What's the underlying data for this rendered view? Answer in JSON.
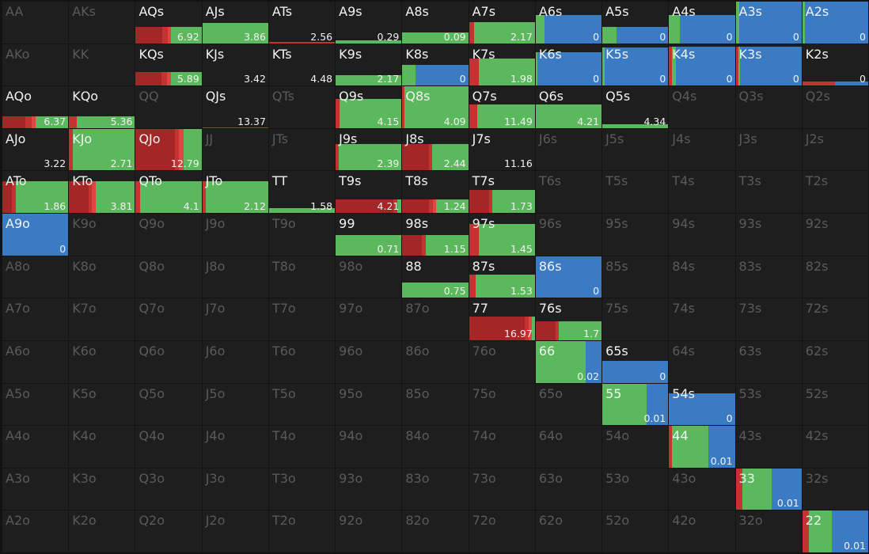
{
  "colors": {
    "fold": "#3b7bc4",
    "call": "#5cb85c",
    "raise_small": "#a52626",
    "raise_mid": "#c43232",
    "raise_big": "#e04545",
    "cell_bg": "#1e1e1e",
    "grid_bg": "#131313",
    "active_text": "#f2f2f2",
    "inactive_text": "#5a5a5a"
  },
  "ranks": [
    "A",
    "K",
    "Q",
    "J",
    "T",
    "9",
    "8",
    "7",
    "6",
    "5",
    "4",
    "3",
    "2"
  ],
  "cells": {
    "AQs": {
      "value": "6.92",
      "fill": 0.4,
      "mix": [
        [
          "raise_small",
          0.4
        ],
        [
          "raise_mid",
          0.09
        ],
        [
          "raise_big",
          0.05
        ],
        [
          "call",
          0.46
        ]
      ]
    },
    "AJs": {
      "value": "3.86",
      "fill": 0.48,
      "mix": [
        [
          "call",
          1.0
        ]
      ]
    },
    "ATs": {
      "value": "2.56",
      "fill": 0.04,
      "mix": [
        [
          "raise_mid",
          1.0
        ]
      ]
    },
    "A9s": {
      "value": "0.29",
      "fill": 0.06,
      "mix": [
        [
          "call",
          1.0
        ]
      ]
    },
    "A8s": {
      "value": "0.09",
      "fill": 0.26,
      "mix": [
        [
          "call",
          1.0
        ]
      ]
    },
    "A7s": {
      "value": "2.17",
      "fill": 0.5,
      "mix": [
        [
          "raise_mid",
          0.08
        ],
        [
          "call",
          0.92
        ]
      ]
    },
    "A6s": {
      "value": "0",
      "fill": 0.68,
      "mix": [
        [
          "call",
          0.14
        ],
        [
          "fold",
          0.86
        ]
      ]
    },
    "A5s": {
      "value": "0",
      "fill": 0.4,
      "mix": [
        [
          "call",
          0.22
        ],
        [
          "fold",
          0.78
        ]
      ]
    },
    "A4s": {
      "value": "0",
      "fill": 0.68,
      "mix": [
        [
          "call",
          0.17
        ],
        [
          "fold",
          0.83
        ]
      ]
    },
    "A3s": {
      "value": "0",
      "fill": 1.0,
      "mix": [
        [
          "call",
          0.05
        ],
        [
          "fold",
          0.95
        ]
      ]
    },
    "A2s": {
      "value": "0",
      "fill": 1.0,
      "mix": [
        [
          "call",
          0.04
        ],
        [
          "fold",
          0.96
        ]
      ]
    },
    "KQs": {
      "value": "5.89",
      "fill": 0.32,
      "mix": [
        [
          "raise_small",
          0.39
        ],
        [
          "raise_mid",
          0.09
        ],
        [
          "raise_big",
          0.05
        ],
        [
          "call",
          0.47
        ]
      ]
    },
    "KJs": {
      "value": "3.42"
    },
    "KTs": {
      "value": "4.48"
    },
    "K9s": {
      "value": "2.17",
      "fill": 0.26,
      "mix": [
        [
          "call",
          1.0
        ]
      ]
    },
    "K8s": {
      "value": "0",
      "fill": 0.5,
      "mix": [
        [
          "call",
          0.2
        ],
        [
          "fold",
          0.8
        ]
      ]
    },
    "K7s": {
      "value": "1.98",
      "fill": 0.65,
      "mix": [
        [
          "raise_mid",
          0.15
        ],
        [
          "call",
          0.85
        ]
      ]
    },
    "K6s": {
      "value": "0",
      "fill": 0.8,
      "mix": [
        [
          "call",
          0.03
        ],
        [
          "fold",
          0.97
        ]
      ]
    },
    "K5s": {
      "value": "0",
      "fill": 0.92,
      "mix": [
        [
          "call",
          0.03
        ],
        [
          "fold",
          0.97
        ]
      ]
    },
    "K4s": {
      "value": "0",
      "fill": 0.93,
      "mix": [
        [
          "raise_mid",
          0.04
        ],
        [
          "call",
          0.06
        ],
        [
          "fold",
          0.9
        ]
      ]
    },
    "K3s": {
      "value": "0",
      "fill": 0.93,
      "mix": [
        [
          "raise_mid",
          0.04
        ],
        [
          "call",
          0.03
        ],
        [
          "fold",
          0.93
        ]
      ]
    },
    "K2s": {
      "value": "0",
      "fill": 0.1,
      "mix": [
        [
          "raise_mid",
          0.5
        ],
        [
          "fold",
          0.5
        ]
      ]
    },
    "AQo": {
      "value": "6.37",
      "fill": 0.28,
      "mix": [
        [
          "raise_small",
          0.35
        ],
        [
          "raise_mid",
          0.1
        ],
        [
          "raise_big",
          0.05
        ],
        [
          "call",
          0.5
        ]
      ]
    },
    "KQo": {
      "value": "5.36",
      "fill": 0.28,
      "mix": [
        [
          "raise_mid",
          0.12
        ],
        [
          "call",
          0.88
        ]
      ]
    },
    "QJs": {
      "value": "13.37",
      "fill": 0.02,
      "mix": [
        [
          "raise_mid",
          1.0
        ]
      ]
    },
    "Q9s": {
      "value": "4.15",
      "fill": 0.7,
      "mix": [
        [
          "raise_mid",
          0.06
        ],
        [
          "call",
          0.94
        ]
      ]
    },
    "Q8s": {
      "value": "4.09",
      "fill": 1.0,
      "mix": [
        [
          "raise_mid",
          0.03
        ],
        [
          "call",
          0.97
        ]
      ]
    },
    "Q7s": {
      "value": "11.49",
      "fill": 0.56,
      "mix": [
        [
          "raise_mid",
          0.12
        ],
        [
          "call",
          0.88
        ]
      ]
    },
    "Q6s": {
      "value": "4.21",
      "fill": 0.56,
      "mix": [
        [
          "call",
          1.0
        ]
      ]
    },
    "Q5s": {
      "value": "4.34",
      "fill": 0.09,
      "mix": [
        [
          "call",
          1.0
        ]
      ]
    },
    "AJo": {
      "value": "3.22"
    },
    "KJo": {
      "value": "2.71",
      "fill": 1.0,
      "mix": [
        [
          "raise_mid",
          0.06
        ],
        [
          "call",
          0.94
        ]
      ]
    },
    "QJo": {
      "value": "12.79",
      "fill": 1.0,
      "mix": [
        [
          "raise_small",
          0.6
        ],
        [
          "raise_mid",
          0.06
        ],
        [
          "raise_big",
          0.07
        ],
        [
          "call",
          0.27
        ]
      ]
    },
    "J9s": {
      "value": "2.39",
      "fill": 0.64,
      "mix": [
        [
          "raise_mid",
          0.05
        ],
        [
          "call",
          0.95
        ]
      ]
    },
    "J8s": {
      "value": "2.44",
      "fill": 0.64,
      "mix": [
        [
          "raise_small",
          0.4
        ],
        [
          "raise_mid",
          0.05
        ],
        [
          "call",
          0.55
        ]
      ]
    },
    "J7s": {
      "value": "11.16"
    },
    "ATo": {
      "value": "1.86",
      "fill": 0.76,
      "mix": [
        [
          "raise_small",
          0.15
        ],
        [
          "raise_mid",
          0.05
        ],
        [
          "call",
          0.8
        ]
      ]
    },
    "KTo": {
      "value": "3.81",
      "fill": 0.76,
      "mix": [
        [
          "raise_small",
          0.3
        ],
        [
          "raise_mid",
          0.05
        ],
        [
          "raise_big",
          0.05
        ],
        [
          "call",
          0.6
        ]
      ]
    },
    "QTo": {
      "value": "4.1",
      "fill": 0.76,
      "mix": [
        [
          "raise_mid",
          0.07
        ],
        [
          "call",
          0.93
        ]
      ]
    },
    "JTo": {
      "value": "2.12",
      "fill": 0.76,
      "mix": [
        [
          "raise_mid",
          0.05
        ],
        [
          "call",
          0.95
        ]
      ]
    },
    "TT": {
      "value": "1.58",
      "fill": 0.12,
      "mix": [
        [
          "call",
          1.0
        ]
      ]
    },
    "T9s": {
      "value": "4.21",
      "fill": 0.32,
      "mix": [
        [
          "raise_small",
          0.88
        ],
        [
          "raise_mid",
          0.05
        ],
        [
          "call",
          0.07
        ]
      ]
    },
    "T8s": {
      "value": "1.24",
      "fill": 0.32,
      "mix": [
        [
          "raise_small",
          0.4
        ],
        [
          "raise_mid",
          0.06
        ],
        [
          "raise_big",
          0.05
        ],
        [
          "call",
          0.49
        ]
      ]
    },
    "T7s": {
      "value": "1.73",
      "fill": 0.56,
      "mix": [
        [
          "raise_small",
          0.3
        ],
        [
          "raise_mid",
          0.05
        ],
        [
          "call",
          0.65
        ]
      ]
    },
    "A9o": {
      "value": "0",
      "fill": 1.0,
      "mix": [
        [
          "fold",
          1.0
        ]
      ]
    },
    "99": {
      "value": "0.71",
      "fill": 0.48,
      "mix": [
        [
          "call",
          1.0
        ]
      ]
    },
    "98s": {
      "value": "1.15",
      "fill": 0.48,
      "mix": [
        [
          "raise_small",
          0.3
        ],
        [
          "raise_mid",
          0.05
        ],
        [
          "call",
          0.65
        ]
      ]
    },
    "97s": {
      "value": "1.45",
      "fill": 0.76,
      "mix": [
        [
          "raise_mid",
          0.15
        ],
        [
          "call",
          0.85
        ]
      ]
    },
    "88": {
      "value": "0.75",
      "fill": 0.36,
      "mix": [
        [
          "call",
          1.0
        ]
      ]
    },
    "87s": {
      "value": "1.53",
      "fill": 0.56,
      "mix": [
        [
          "raise_mid",
          0.1
        ],
        [
          "call",
          0.9
        ]
      ]
    },
    "86s": {
      "value": "0",
      "fill": 1.0,
      "mix": [
        [
          "fold",
          1.0
        ]
      ]
    },
    "77": {
      "value": "16.97",
      "fill": 0.56,
      "mix": [
        [
          "raise_small",
          0.85
        ],
        [
          "raise_mid",
          0.05
        ],
        [
          "raise_big",
          0.05
        ],
        [
          "call",
          0.05
        ]
      ]
    },
    "76s": {
      "value": "1.7",
      "fill": 0.45,
      "mix": [
        [
          "raise_small",
          0.3
        ],
        [
          "raise_mid",
          0.05
        ],
        [
          "call",
          0.65
        ]
      ]
    },
    "66": {
      "value": "0.02",
      "fill": 1.0,
      "mix": [
        [
          "call",
          0.76
        ],
        [
          "fold",
          0.24
        ]
      ]
    },
    "65s": {
      "value": "0",
      "fill": 0.52,
      "mix": [
        [
          "fold",
          1.0
        ]
      ]
    },
    "55": {
      "value": "0.01",
      "fill": 1.0,
      "mix": [
        [
          "call",
          0.67
        ],
        [
          "fold",
          0.33
        ]
      ]
    },
    "54s": {
      "value": "0",
      "fill": 0.76,
      "mix": [
        [
          "fold",
          1.0
        ]
      ]
    },
    "44": {
      "value": "0.01",
      "fill": 1.0,
      "mix": [
        [
          "raise_mid",
          0.05
        ],
        [
          "call",
          0.55
        ],
        [
          "fold",
          0.4
        ]
      ]
    },
    "33": {
      "value": "0.01",
      "fill": 1.0,
      "mix": [
        [
          "raise_mid",
          0.1
        ],
        [
          "call",
          0.45
        ],
        [
          "fold",
          0.45
        ]
      ]
    },
    "22": {
      "value": "0.01",
      "fill": 1.0,
      "mix": [
        [
          "raise_mid",
          0.1
        ],
        [
          "call",
          0.35
        ],
        [
          "fold",
          0.55
        ]
      ]
    }
  }
}
